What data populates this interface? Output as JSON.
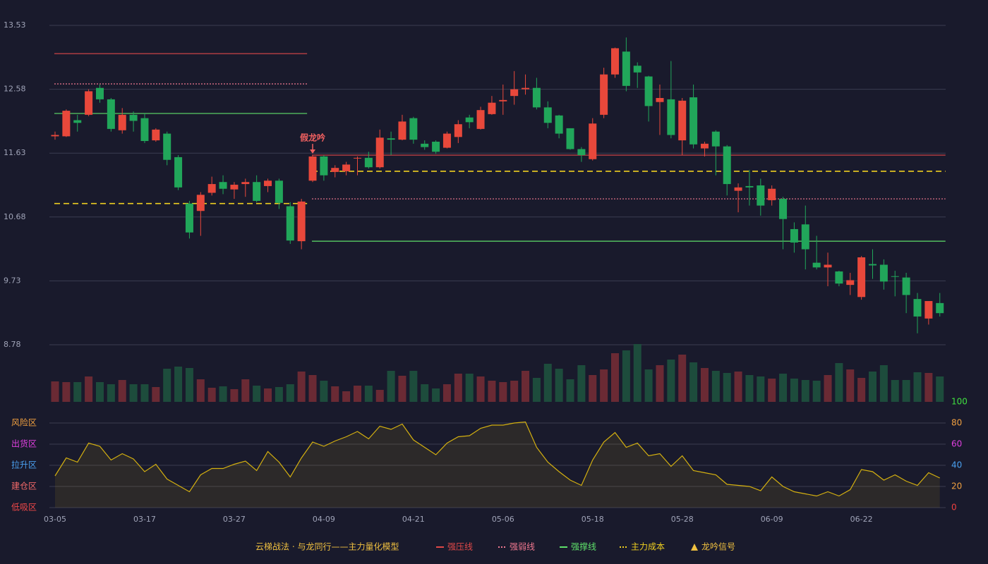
{
  "chart_data": {
    "type": "candlestick",
    "title": "云梯战法 · 与龙同行——主力量化模型",
    "categories": [
      "03-05",
      null,
      null,
      null,
      null,
      null,
      null,
      null,
      "03-17",
      null,
      null,
      null,
      null,
      null,
      null,
      null,
      "03-27",
      null,
      null,
      null,
      null,
      null,
      null,
      null,
      "04-09",
      null,
      null,
      null,
      null,
      null,
      null,
      null,
      "04-21",
      null,
      null,
      null,
      null,
      null,
      null,
      null,
      "05-06",
      null,
      null,
      null,
      null,
      null,
      null,
      null,
      "05-18",
      null,
      null,
      null,
      null,
      null,
      null,
      null,
      "05-28",
      null,
      null,
      null,
      null,
      null,
      null,
      null,
      "06-09",
      null,
      null,
      null,
      null,
      null,
      null,
      null,
      "06-22",
      null,
      null,
      null,
      null,
      null,
      null,
      null
    ],
    "open": [
      11.88,
      11.88,
      12.12,
      12.2,
      12.6,
      12.43,
      11.97,
      12.2,
      12.15,
      11.82,
      11.92,
      11.57,
      10.88,
      10.77,
      11.04,
      11.2,
      11.09,
      11.17,
      11.2,
      11.14,
      11.22,
      10.84,
      10.32,
      11.22,
      11.58,
      11.35,
      11.36,
      11.55,
      11.56,
      11.42,
      11.85,
      11.83,
      12.15,
      11.77,
      11.8,
      11.71,
      11.87,
      12.16,
      11.99,
      12.21,
      12.4,
      12.48,
      12.58,
      12.6,
      12.31,
      12.19,
      12.0,
      11.69,
      11.54,
      12.2,
      12.8,
      13.14,
      12.93,
      12.77,
      12.39,
      12.43,
      11.82,
      12.46,
      11.7,
      11.95,
      11.73,
      11.07,
      11.14,
      11.15,
      10.93,
      10.95,
      10.5,
      10.57,
      10.0,
      9.93,
      9.87,
      9.67,
      9.49,
      9.98,
      9.97,
      9.8,
      9.78,
      9.46,
      9.17,
      9.4
    ],
    "high": [
      11.95,
      12.28,
      12.2,
      12.58,
      12.65,
      12.45,
      12.3,
      12.25,
      12.22,
      12.0,
      11.95,
      11.6,
      10.92,
      11.05,
      11.28,
      11.3,
      11.2,
      11.25,
      11.3,
      11.25,
      11.25,
      10.9,
      10.95,
      11.6,
      11.6,
      11.45,
      11.5,
      11.58,
      11.65,
      11.98,
      11.95,
      12.2,
      12.17,
      11.82,
      11.82,
      11.95,
      12.12,
      12.2,
      12.32,
      12.48,
      12.65,
      12.85,
      12.8,
      12.75,
      12.4,
      12.2,
      12.0,
      11.72,
      12.15,
      12.9,
      13.2,
      13.35,
      12.98,
      12.78,
      12.65,
      13.0,
      12.45,
      12.65,
      11.8,
      11.97,
      11.75,
      11.18,
      11.38,
      11.25,
      11.15,
      10.98,
      10.6,
      10.85,
      10.4,
      10.15,
      9.88,
      9.85,
      10.1,
      10.2,
      10.05,
      9.88,
      9.85,
      9.55,
      9.43,
      9.55
    ],
    "low": [
      11.83,
      11.87,
      11.95,
      12.18,
      12.38,
      11.95,
      11.92,
      11.95,
      11.78,
      11.8,
      11.45,
      11.08,
      10.36,
      10.4,
      11.0,
      11.02,
      10.95,
      10.98,
      10.9,
      11.05,
      10.8,
      10.28,
      10.2,
      11.2,
      11.22,
      11.27,
      11.3,
      11.3,
      11.4,
      11.4,
      11.6,
      11.82,
      11.77,
      11.68,
      11.62,
      11.7,
      11.78,
      12.0,
      11.98,
      12.2,
      12.2,
      12.35,
      12.5,
      12.28,
      12.0,
      11.85,
      11.68,
      11.5,
      11.52,
      12.15,
      12.75,
      12.55,
      12.6,
      12.1,
      11.9,
      11.85,
      11.6,
      11.7,
      11.58,
      11.3,
      11.0,
      10.75,
      10.85,
      10.7,
      10.85,
      10.2,
      10.15,
      9.9,
      9.9,
      9.65,
      9.65,
      9.52,
      9.45,
      9.76,
      9.6,
      9.5,
      9.25,
      8.95,
      9.08,
      9.2
    ],
    "close": [
      11.9,
      12.26,
      12.08,
      12.55,
      12.43,
      11.99,
      12.2,
      12.11,
      11.81,
      11.98,
      11.53,
      11.12,
      10.45,
      11.01,
      11.17,
      11.1,
      11.16,
      11.2,
      10.92,
      11.22,
      10.89,
      10.33,
      10.91,
      11.58,
      11.3,
      11.41,
      11.46,
      11.56,
      11.42,
      11.86,
      11.83,
      12.1,
      11.83,
      11.72,
      11.65,
      11.92,
      12.06,
      12.09,
      12.27,
      12.38,
      12.42,
      12.58,
      12.6,
      12.31,
      12.08,
      11.92,
      11.69,
      11.6,
      12.07,
      12.8,
      13.19,
      12.63,
      12.83,
      12.33,
      12.45,
      11.9,
      12.41,
      11.76,
      11.77,
      11.73,
      11.17,
      11.12,
      11.12,
      10.85,
      11.1,
      10.65,
      10.3,
      10.2,
      9.93,
      9.97,
      9.69,
      9.74,
      10.08,
      9.96,
      9.72,
      9.79,
      9.52,
      9.2,
      9.43,
      9.25
    ],
    "volume": [
      29,
      28,
      28,
      36,
      28,
      25,
      31,
      25,
      25,
      21,
      47,
      50,
      48,
      32,
      20,
      22,
      18,
      32,
      23,
      19,
      21,
      25,
      43,
      38,
      30,
      22,
      15,
      23,
      23,
      17,
      44,
      37,
      44,
      25,
      19,
      25,
      40,
      40,
      36,
      30,
      28,
      30,
      44,
      34,
      54,
      47,
      32,
      52,
      38,
      46,
      69,
      73,
      82,
      46,
      52,
      60,
      67,
      56,
      48,
      44,
      41,
      43,
      38,
      36,
      33,
      40,
      33,
      31,
      30,
      38,
      55,
      46,
      34,
      43,
      52,
      31,
      31,
      42,
      41,
      36
    ],
    "ylim": [
      8.78,
      13.53
    ],
    "yticks": [
      8.78,
      9.73,
      10.68,
      11.63,
      12.58,
      13.53
    ],
    "grid": true,
    "up_color": "#e8483b",
    "down_color": "#21a65a",
    "levels": [
      {
        "name": "强压线",
        "color": "#e04848",
        "style": "solid",
        "segments": [
          {
            "from": 0,
            "to": 22,
            "value": 13.11
          },
          {
            "from": 23,
            "to": 79,
            "value": 11.6
          }
        ]
      },
      {
        "name": "强弱线",
        "color": "#f07890",
        "style": "dotted",
        "segments": [
          {
            "from": 0,
            "to": 22,
            "value": 12.66
          },
          {
            "from": 23,
            "to": 79,
            "value": 10.95
          }
        ]
      },
      {
        "name": "强撑线",
        "color": "#5ee06a",
        "style": "solid",
        "segments": [
          {
            "from": 0,
            "to": 22,
            "value": 12.22
          },
          {
            "from": 23,
            "to": 79,
            "value": 10.32
          }
        ]
      },
      {
        "name": "主力成本",
        "color": "#f0d020",
        "style": "dashed",
        "segments": [
          {
            "from": 0,
            "to": 22,
            "value": 10.88
          },
          {
            "from": 23,
            "to": 79,
            "value": 11.36
          }
        ]
      }
    ],
    "signal_name": "龙吟信号",
    "signal_color": "#f0c040",
    "signals": [
      {
        "label": "假龙吟",
        "index": 23,
        "color": "#f06060"
      }
    ],
    "indicator": {
      "values": [
        30,
        47,
        43,
        61,
        58,
        45,
        51,
        46,
        34,
        41,
        27,
        21,
        15,
        31,
        37,
        37,
        41,
        44,
        35,
        53,
        43,
        29,
        47,
        62,
        58,
        63,
        67,
        72,
        65,
        77,
        74,
        79,
        64,
        57,
        50,
        61,
        67,
        68,
        75,
        78,
        78,
        80,
        81,
        57,
        43,
        34,
        26,
        21,
        45,
        62,
        71,
        57,
        61,
        49,
        51,
        39,
        49,
        35,
        33,
        31,
        22,
        21,
        20,
        16,
        29,
        20,
        15,
        13,
        11,
        15,
        11,
        17,
        36,
        34,
        26,
        31,
        25,
        21,
        33,
        28
      ],
      "color": "#d4b010",
      "ylim": [
        0,
        100
      ],
      "yticks": [
        0,
        20,
        40,
        60,
        80,
        100
      ],
      "ytick_colors": [
        "#f04040",
        "#f0a040",
        "#4aa0f0",
        "#e040e0",
        "#f0a040",
        "#40e040"
      ],
      "zones": [
        {
          "label": "低吸区",
          "value": 0,
          "color": "#f04848"
        },
        {
          "label": "建仓区",
          "value": 20,
          "color": "#f06868"
        },
        {
          "label": "拉升区",
          "value": 40,
          "color": "#4aa0f0"
        },
        {
          "label": "出货区",
          "value": 60,
          "color": "#e040e0"
        },
        {
          "label": "风险区",
          "value": 80,
          "color": "#f0a040"
        }
      ]
    }
  }
}
